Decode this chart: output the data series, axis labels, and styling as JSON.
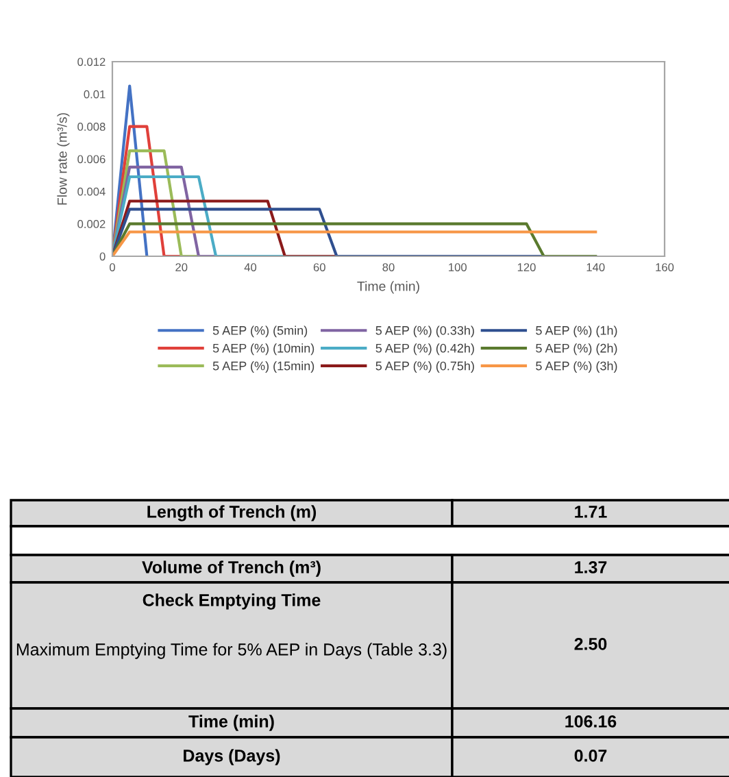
{
  "chart_data": {
    "type": "line",
    "xlabel": "Time (min)",
    "ylabel": "Flow rate (m³/s)",
    "xlim": [
      0,
      160
    ],
    "xticks": [
      0,
      20,
      40,
      60,
      80,
      100,
      120,
      140,
      160
    ],
    "ylim": [
      0,
      0.012
    ],
    "yticks": [
      0,
      0.002,
      0.004,
      0.006,
      0.008,
      0.01,
      0.012
    ],
    "grid": false,
    "legend": "bottom",
    "marker": "none",
    "line_style": "solid",
    "series": [
      {
        "name": "5 AEP (%) (5min)",
        "color": "#4472c4",
        "x": [
          0,
          5,
          10
        ],
        "values": [
          0,
          0.0105,
          0
        ]
      },
      {
        "name": "5 AEP (%) (10min)",
        "color": "#e0403a",
        "x": [
          0,
          5,
          10,
          15,
          20
        ],
        "values": [
          0,
          0.008,
          0.008,
          0,
          0
        ]
      },
      {
        "name": "5 AEP (%) (15min)",
        "color": "#9bbb59",
        "x": [
          0,
          5,
          15,
          20,
          25
        ],
        "values": [
          0,
          0.0065,
          0.0065,
          0,
          0
        ]
      },
      {
        "name": "5 AEP (%) (0.33h)",
        "color": "#8064a2",
        "x": [
          0,
          5,
          20,
          25,
          30
        ],
        "values": [
          0,
          0.0055,
          0.0055,
          0,
          0
        ]
      },
      {
        "name": "5 AEP (%) (0.42h)",
        "color": "#4bacc6",
        "x": [
          0,
          5,
          25,
          30,
          50
        ],
        "values": [
          0,
          0.0049,
          0.0049,
          0,
          0
        ]
      },
      {
        "name": "5 AEP (%) (0.75h)",
        "color": "#8b1a1a",
        "x": [
          0,
          5,
          45,
          50,
          65
        ],
        "values": [
          0,
          0.0034,
          0.0034,
          0,
          0
        ]
      },
      {
        "name": "5 AEP (%) (1h)",
        "color": "#2f4f8f",
        "x": [
          0,
          5,
          60,
          65,
          125
        ],
        "values": [
          0,
          0.0029,
          0.0029,
          0,
          0
        ]
      },
      {
        "name": "5 AEP (%) (2h)",
        "color": "#5a7a2e",
        "x": [
          0,
          5,
          120,
          125,
          140
        ],
        "values": [
          0,
          0.002,
          0.002,
          0,
          0
        ]
      },
      {
        "name": "5 AEP (%) (3h)",
        "color": "#f79646",
        "x": [
          0,
          5,
          140
        ],
        "values": [
          0,
          0.0015,
          0.0015
        ]
      }
    ],
    "annotations": [
      "Length of Trench (m)",
      "1.71",
      "Volume of Trench (m³)",
      "1.37",
      "Check Emptying Time",
      "Maximum Emptying Time for 5% AEP in Days (Table 3.3)",
      "2.50",
      "Time (min)",
      "106.16",
      "Days (Days)",
      "0.07"
    ]
  }
}
